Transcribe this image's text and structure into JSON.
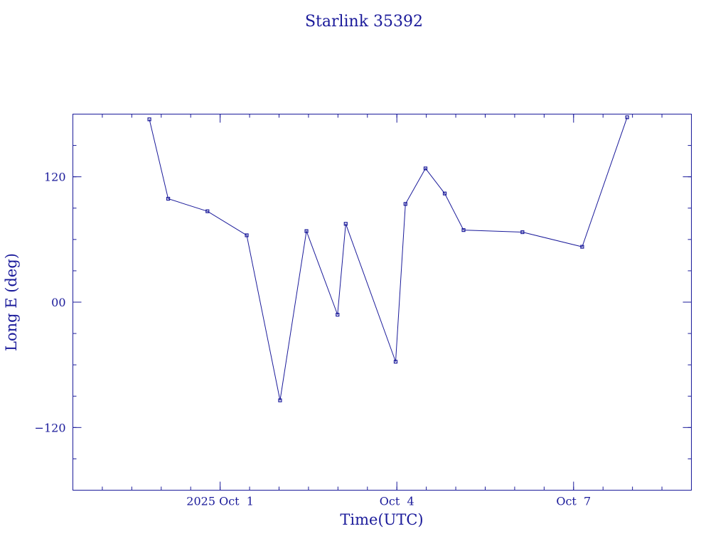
{
  "chart_data": {
    "type": "line",
    "title": "Starlink 35392",
    "xlabel": "Time(UTC)",
    "ylabel": "Long E (deg)",
    "x_unit": "days",
    "xlim": [
      "2025-09-28T12:00",
      "2025-10-09T00:00"
    ],
    "ylim": [
      -180,
      180
    ],
    "grid": false,
    "x_ticks": [
      {
        "value": "2025-10-01T00:00",
        "label": "2025 Oct  1"
      },
      {
        "value": "2025-10-04T00:00",
        "label": "Oct  4"
      },
      {
        "value": "2025-10-07T00:00",
        "label": "Oct  7"
      }
    ],
    "y_ticks": [
      {
        "value": 120,
        "label": "120"
      },
      {
        "value": 0,
        "label": "00"
      },
      {
        "value": -120,
        "label": "−120"
      }
    ],
    "series": [
      {
        "points": [
          {
            "x": "2025-09-29T19:10",
            "y": 175
          },
          {
            "x": "2025-09-30T02:50",
            "y": 99
          },
          {
            "x": "2025-09-30T18:50",
            "y": 87
          },
          {
            "x": "2025-10-01T10:50",
            "y": 64
          },
          {
            "x": "2025-10-02T00:25",
            "y": -94
          },
          {
            "x": "2025-10-02T11:10",
            "y": 68
          },
          {
            "x": "2025-10-02T23:50",
            "y": -12
          },
          {
            "x": "2025-10-03T03:10",
            "y": 75
          },
          {
            "x": "2025-10-03T23:30",
            "y": -57
          },
          {
            "x": "2025-10-04T03:30",
            "y": 94
          },
          {
            "x": "2025-10-04T11:40",
            "y": 128
          },
          {
            "x": "2025-10-04T19:30",
            "y": 104
          },
          {
            "x": "2025-10-05T03:10",
            "y": 69
          },
          {
            "x": "2025-10-06T03:10",
            "y": 67
          },
          {
            "x": "2025-10-07T03:30",
            "y": 53
          },
          {
            "x": "2025-10-07T21:50",
            "y": 177
          }
        ]
      }
    ]
  }
}
